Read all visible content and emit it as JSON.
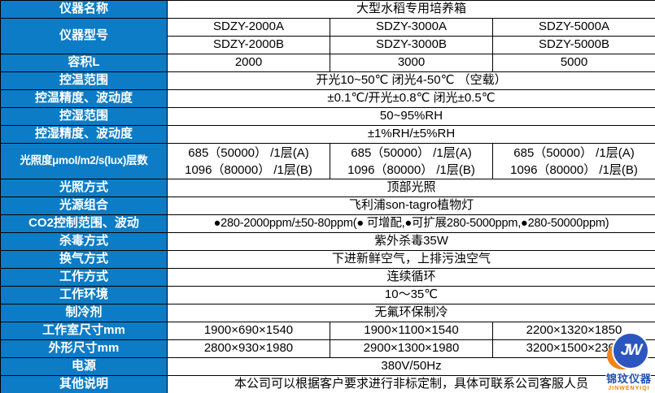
{
  "title": "大型水稻专用培养箱",
  "colors": {
    "header_bg": "#0c7cc6",
    "header_text": "#ffffff",
    "border": "#000000",
    "cell_bg": "#ffffff",
    "cell_text": "#000000",
    "logo_circle": "#2b56c0",
    "logo_crescent": "#f08519",
    "logo_cn_text": "#1d4fae",
    "logo_en_text": "#f08300"
  },
  "rows": {
    "name": {
      "label": "仪器名称",
      "value": "大型水稻专用培养箱"
    },
    "model": {
      "label": "仪器型号",
      "a": [
        "SDZY-2000A",
        "SDZY-3000A",
        "SDZY-5000A"
      ],
      "b": [
        "SDZY-2000B",
        "SDZY-3000B",
        "SDZY-5000B"
      ]
    },
    "volume": {
      "label": "容积L",
      "values": [
        "2000",
        "3000",
        "5000"
      ]
    },
    "temp_range": {
      "label": "控温范围",
      "value": "开光10~50℃ 闭光4-50℃ （空载）"
    },
    "temp_accuracy": {
      "label": "控温精度、波动度",
      "value": "±0.1℃/开光±0.8℃ 闭光±0.5℃"
    },
    "humidity_range": {
      "label": "控湿范围",
      "value": "50~95%RH"
    },
    "humidity_accuracy": {
      "label": "控湿精度、波动度",
      "value": "±1%RH/±5%RH"
    },
    "light": {
      "label": "光照度μmol/m2/s(lux)层数",
      "cols": [
        {
          "a": "685（50000） /1层(A)",
          "b": "1096（80000） /1层(B)"
        },
        {
          "a": "685（50000） /1层(A)",
          "b": "1096（80000） /1层(B)"
        },
        {
          "a": "685（50000） /1层(A)",
          "b": "1096（80000） /1层(B)"
        }
      ]
    },
    "light_mode": {
      "label": "光照方式",
      "value": "顶部光照"
    },
    "light_source": {
      "label": "光源组合",
      "value": "飞利浦son-tagro植物灯"
    },
    "co2": {
      "label": "CO2控制范围、波动",
      "value": "●280-2000ppm/±50-80ppm(● 可增配,●可扩展280-5000ppm,●280-50000ppm)"
    },
    "sterilize": {
      "label": "杀毒方式",
      "value": "紫外杀毒35W"
    },
    "ventilation": {
      "label": "换气方式",
      "value": "下进新鲜空气，上排污浊空气"
    },
    "work_mode": {
      "label": "工作方式",
      "value": "连续循环"
    },
    "environment": {
      "label": "工作环境",
      "value": "10～35℃"
    },
    "refrigerant": {
      "label": "制冷剂",
      "value": "无氟环保制冷"
    },
    "chamber_size": {
      "label": "工作室尺寸mm",
      "values": [
        "1900×690×1540",
        "1900×1100×1540",
        "2200×1320×1850"
      ]
    },
    "outer_size": {
      "label": "外形尺寸mm",
      "values": [
        "2800×930×1980",
        "2900×1300×1980",
        "3200×1500×2300"
      ]
    },
    "power": {
      "label": "电源",
      "value": "380V/50Hz"
    },
    "other": {
      "label": "其他说明",
      "value": "本公司可以根据客户要求进行非标定制，具体可联系公司客服人员"
    }
  },
  "logo": {
    "monogram": "JW",
    "name_cn": "锦玟仪器",
    "name_en": "JINWENYIQI"
  }
}
